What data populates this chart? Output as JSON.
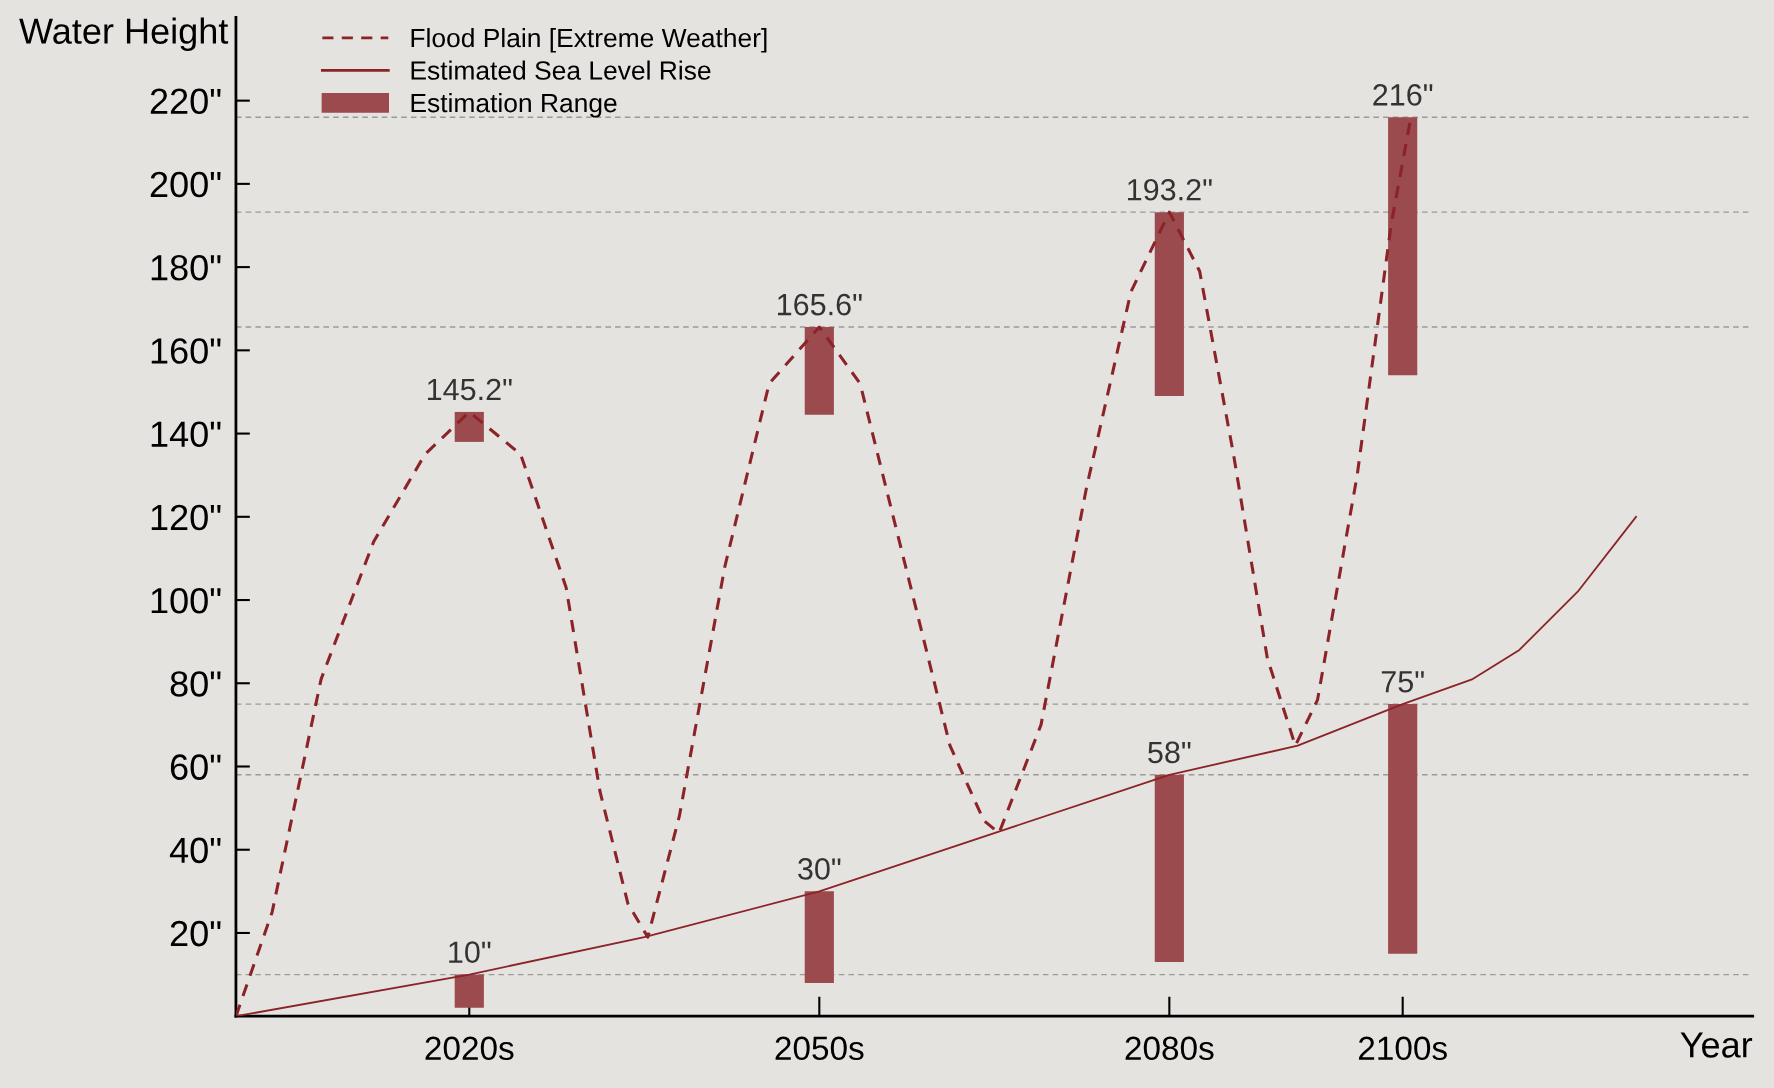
{
  "chart_data": {
    "type": "line",
    "xlabel": "Year",
    "ylabel": "Water Height",
    "xlim": [
      2000,
      2130
    ],
    "ylim": [
      0,
      240
    ],
    "xticks": [
      {
        "value": 2020,
        "label": "2020s"
      },
      {
        "value": 2050,
        "label": "2050s"
      },
      {
        "value": 2080,
        "label": "2080s"
      },
      {
        "value": 2100,
        "label": "2100s"
      }
    ],
    "yticks": [
      {
        "value": 20,
        "label": "20\""
      },
      {
        "value": 40,
        "label": "40\""
      },
      {
        "value": 60,
        "label": "60\""
      },
      {
        "value": 80,
        "label": "80\""
      },
      {
        "value": 100,
        "label": "100\""
      },
      {
        "value": 120,
        "label": "120\""
      },
      {
        "value": 140,
        "label": "140\""
      },
      {
        "value": 160,
        "label": "160\""
      },
      {
        "value": 180,
        "label": "180\""
      },
      {
        "value": 200,
        "label": "200\""
      },
      {
        "value": 220,
        "label": "220\""
      }
    ],
    "grid": false,
    "legend": "top left",
    "series": [
      {
        "name": "Flood Plain [Extreme Weather]",
        "line_style": "dashed",
        "color": "#8b2328",
        "x": [
          2000,
          2003.1,
          2007.3,
          2011.8,
          2016.2,
          2020,
          2024.4,
          2028.3,
          2031.2,
          2033.6,
          2035.3,
          2038,
          2041.9,
          2045.7,
          2050,
          2053.5,
          2057.4,
          2061.2,
          2064.1,
          2065.4,
          2069,
          2072.9,
          2076.7,
          2080,
          2082.6,
          2085.5,
          2088.4,
          2090.8,
          2092.7,
          2096.1,
          2099,
          2100.7
        ],
        "values": [
          0,
          25,
          81,
          114,
          135,
          145.2,
          135,
          103,
          54,
          27,
          19,
          48,
          108,
          152,
          165.6,
          152,
          108,
          65,
          47,
          44,
          70,
          127,
          174,
          193.2,
          179,
          135,
          86,
          65,
          76,
          130,
          190,
          216
        ]
      },
      {
        "name": "Estimated Sea Level Rise",
        "line_style": "solid",
        "color": "#8b2328",
        "x": [
          2000,
          2020,
          2035,
          2050,
          2065,
          2080,
          2091,
          2100,
          2106,
          2110,
          2115,
          2120
        ],
        "values": [
          0,
          10,
          19,
          30,
          44,
          58,
          65,
          75,
          81,
          88,
          102,
          120
        ]
      },
      {
        "name": "Estimation Range",
        "type": "bar",
        "color": "#9b4a4e",
        "x": [
          2020,
          2050,
          2080,
          2100
        ],
        "base": [
          2,
          8,
          13,
          15
        ],
        "values": [
          8,
          22,
          45,
          60
        ]
      },
      {
        "type": "bar",
        "color": "#9b4a4e",
        "x": [
          2020,
          2050,
          2080,
          2100
        ],
        "base": [
          138,
          144.5,
          149,
          154
        ],
        "values": [
          7.2,
          21.1,
          44.2,
          62
        ]
      }
    ],
    "ref_lines": [
      {
        "axis": "y",
        "value": 10,
        "color": "#9a9a9a",
        "line_style": "dashed"
      },
      {
        "axis": "y",
        "value": 58,
        "color": "#9a9a9a",
        "line_style": "dashed"
      },
      {
        "axis": "y",
        "value": 75,
        "color": "#9a9a9a",
        "line_style": "dashed"
      },
      {
        "axis": "y",
        "value": 165.6,
        "color": "#9a9a9a",
        "line_style": "dashed"
      },
      {
        "axis": "y",
        "value": 193.2,
        "color": "#9a9a9a",
        "line_style": "dashed"
      },
      {
        "axis": "y",
        "value": 216,
        "color": "#9a9a9a",
        "line_style": "dashed"
      }
    ],
    "annotations": [
      {
        "text": "10\"",
        "x": 2020,
        "y": 10
      },
      {
        "text": "145.2\"",
        "x": 2020,
        "y": 145.2
      },
      {
        "text": "30\"",
        "x": 2050,
        "y": 30
      },
      {
        "text": "165.6\"",
        "x": 2050,
        "y": 165.6
      },
      {
        "text": "58\"",
        "x": 2080,
        "y": 58
      },
      {
        "text": "193.2\"",
        "x": 2080,
        "y": 193.2
      },
      {
        "text": "75\"",
        "x": 2100,
        "y": 75
      },
      {
        "text": "216\"",
        "x": 2100,
        "y": 216
      }
    ]
  }
}
